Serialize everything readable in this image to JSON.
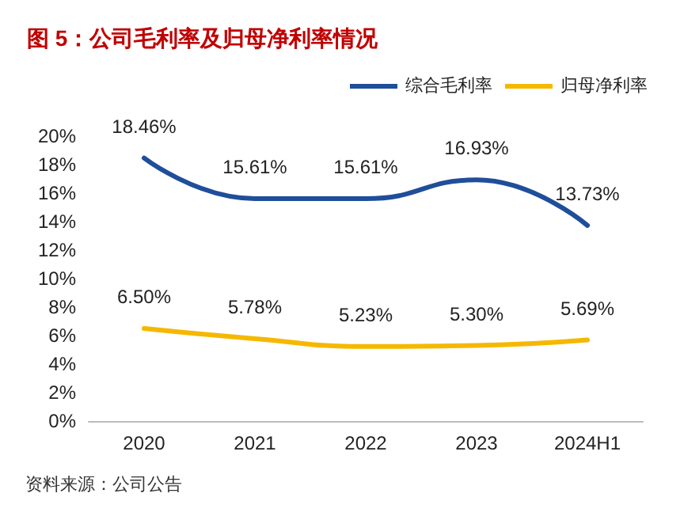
{
  "chart_data": {
    "type": "line",
    "title": "图 5：公司毛利率及归母净利率情况",
    "categories": [
      "2020",
      "2021",
      "2022",
      "2023",
      "2024H1"
    ],
    "series": [
      {
        "name": "综合毛利率",
        "color": "#1f4e9a",
        "values": [
          18.46,
          15.61,
          15.61,
          16.93,
          13.73
        ],
        "value_labels": [
          "18.46%",
          "15.61%",
          "15.61%",
          "16.93%",
          "13.73%"
        ]
      },
      {
        "name": "归母净利率",
        "color": "#f5b800",
        "values": [
          6.5,
          5.78,
          5.23,
          5.3,
          5.69
        ],
        "value_labels": [
          "6.50%",
          "5.78%",
          "5.23%",
          "5.30%",
          "5.69%"
        ]
      }
    ],
    "ylim": [
      0,
      20
    ],
    "yticks": [
      {
        "value": 0,
        "label": "0%"
      },
      {
        "value": 2,
        "label": "2%"
      },
      {
        "value": 4,
        "label": "4%"
      },
      {
        "value": 6,
        "label": "6%"
      },
      {
        "value": 8,
        "label": "8%"
      },
      {
        "value": 10,
        "label": "10%"
      },
      {
        "value": 12,
        "label": "12%"
      },
      {
        "value": 14,
        "label": "14%"
      },
      {
        "value": 16,
        "label": "16%"
      },
      {
        "value": 18,
        "label": "18%"
      },
      {
        "value": 20,
        "label": "20%"
      }
    ],
    "grid": false,
    "legend": "top right",
    "marker": "none",
    "line_style": "solid",
    "annotations": [
      "资料来源：公司公告"
    ]
  }
}
